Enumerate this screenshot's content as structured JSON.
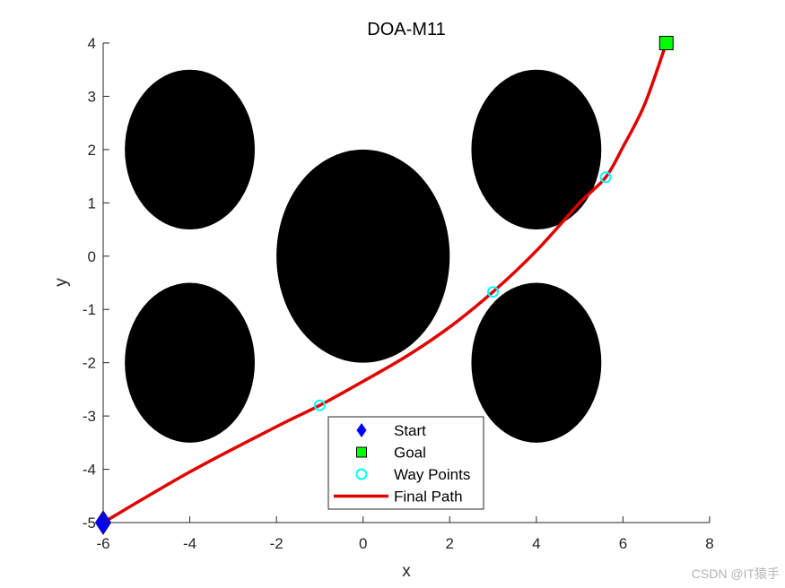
{
  "chart_data": {
    "type": "scatter",
    "title": "DOA-M11",
    "xlabel": "x",
    "ylabel": "y",
    "xlim": [
      -6,
      8
    ],
    "ylim": [
      -5,
      4
    ],
    "xticks": [
      -6,
      -4,
      -2,
      0,
      2,
      4,
      6,
      8
    ],
    "yticks": [
      -5,
      -4,
      -3,
      -2,
      -1,
      0,
      1,
      2,
      3,
      4
    ],
    "grid": false,
    "legend_position": "bottom-center",
    "obstacles": [
      {
        "cx": -4,
        "cy": 2,
        "r": 1.5
      },
      {
        "cx": -4,
        "cy": -2,
        "r": 1.5
      },
      {
        "cx": 0,
        "cy": 0,
        "r": 2
      },
      {
        "cx": 4,
        "cy": 2,
        "r": 1.5
      },
      {
        "cx": 4,
        "cy": -2,
        "r": 1.5
      }
    ],
    "series": [
      {
        "name": "Start",
        "marker": "diamond",
        "color": "#0000ff",
        "points": [
          [
            -6,
            -5
          ]
        ]
      },
      {
        "name": "Goal",
        "marker": "square",
        "color": "#00ff00",
        "points": [
          [
            7,
            4
          ]
        ]
      },
      {
        "name": "Way Points",
        "marker": "circle",
        "color": "#00ffff",
        "points": [
          [
            -1,
            -2.8
          ],
          [
            3,
            -0.67
          ],
          [
            5.6,
            1.48
          ]
        ]
      },
      {
        "name": "Final Path",
        "marker": "line",
        "color": "#e00000",
        "points": [
          [
            -6,
            -5
          ],
          [
            -4,
            -4.05
          ],
          [
            -2,
            -3.2
          ],
          [
            -1,
            -2.8
          ],
          [
            0,
            -2.35
          ],
          [
            1,
            -1.88
          ],
          [
            2,
            -1.33
          ],
          [
            3,
            -0.67
          ],
          [
            4,
            0.1
          ],
          [
            5,
            1.0
          ],
          [
            5.6,
            1.48
          ],
          [
            6,
            2.05
          ],
          [
            6.5,
            2.85
          ],
          [
            7,
            4
          ]
        ]
      }
    ]
  },
  "watermark": "CSDN @IT猿手"
}
